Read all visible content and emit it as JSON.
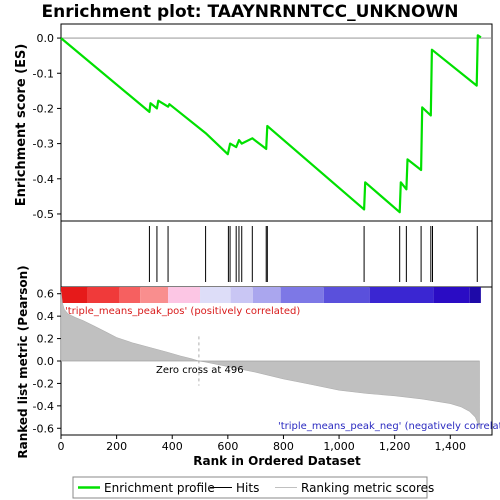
{
  "chart_data": {
    "type": "line",
    "title": "Enrichment plot: TAAYNRNNTCC_UNKNOWN",
    "xlabel": "Rank in Ordered Dataset",
    "ylabel_top": "Enrichment score (ES)",
    "ylabel_bottom": "Ranked list metric (Pearson)",
    "xlim": [
      0,
      1550
    ],
    "x_ticks": [
      0,
      200,
      400,
      600,
      800,
      1000,
      1200,
      1400
    ],
    "x_tick_labels": [
      "0",
      "200",
      "400",
      "600",
      "800",
      "1,000",
      "1,200",
      "1,400"
    ],
    "es_ylim": [
      -0.52,
      0.04
    ],
    "es_ticks": [
      0.0,
      -0.1,
      -0.2,
      -0.3,
      -0.4,
      -0.5
    ],
    "es_tick_labels": [
      "0.0",
      "-0.1",
      "-0.2",
      "-0.3",
      "-0.4",
      "-0.5"
    ],
    "metric_ylim": [
      -0.66,
      0.66
    ],
    "metric_ticks": [
      0.6,
      0.4,
      0.2,
      0.0,
      -0.2,
      -0.4,
      -0.6
    ],
    "metric_tick_labels": [
      "0.6",
      "0.4",
      "0.2",
      "0.0",
      "-0.2",
      "-0.4",
      "-0.6"
    ],
    "series": [
      {
        "name": "Enrichment profile",
        "color": "#00e000",
        "x": [
          0,
          318,
          322,
          345,
          350,
          385,
          390,
          520,
          600,
          608,
          630,
          640,
          650,
          688,
          738,
          742,
          1090,
          1094,
          1218,
          1222,
          1242,
          1246,
          1295,
          1299,
          1330,
          1334,
          1495,
          1499,
          1510
        ],
        "y": [
          0.0,
          -0.21,
          -0.185,
          -0.2,
          -0.178,
          -0.195,
          -0.188,
          -0.27,
          -0.33,
          -0.3,
          -0.31,
          -0.29,
          -0.3,
          -0.285,
          -0.315,
          -0.25,
          -0.487,
          -0.41,
          -0.495,
          -0.41,
          -0.43,
          -0.345,
          -0.375,
          -0.197,
          -0.22,
          -0.033,
          -0.135,
          0.008,
          0.002
        ]
      }
    ],
    "hits": [
      318,
      345,
      385,
      520,
      602,
      608,
      630,
      640,
      650,
      688,
      738,
      742,
      1090,
      1218,
      1242,
      1295,
      1330,
      1336,
      1497
    ],
    "metric_curve": {
      "x": [
        0,
        5,
        12,
        25,
        50,
        80,
        120,
        160,
        200,
        260,
        320,
        380,
        430,
        470,
        496,
        520,
        600,
        700,
        800,
        900,
        1000,
        1100,
        1200,
        1300,
        1400,
        1440,
        1470,
        1490,
        1500,
        1505
      ],
      "y": [
        0.62,
        0.52,
        0.46,
        0.42,
        0.39,
        0.36,
        0.31,
        0.26,
        0.21,
        0.16,
        0.12,
        0.08,
        0.045,
        0.02,
        0.0,
        -0.01,
        -0.05,
        -0.1,
        -0.16,
        -0.21,
        -0.26,
        -0.29,
        -0.31,
        -0.34,
        -0.38,
        -0.41,
        -0.45,
        -0.5,
        -0.56,
        -0.6
      ]
    },
    "colorbar": [
      {
        "x0": 0,
        "x1": 95,
        "color": "#e61a1a"
      },
      {
        "x0": 95,
        "x1": 210,
        "color": "#f03a3a"
      },
      {
        "x0": 210,
        "x1": 285,
        "color": "#f66060"
      },
      {
        "x0": 285,
        "x1": 385,
        "color": "#f98e8e"
      },
      {
        "x0": 385,
        "x1": 500,
        "color": "#fcc6e4"
      },
      {
        "x0": 500,
        "x1": 610,
        "color": "#ddddf8"
      },
      {
        "x0": 610,
        "x1": 690,
        "color": "#c9c6f4"
      },
      {
        "x0": 690,
        "x1": 790,
        "color": "#aaa6ee"
      },
      {
        "x0": 790,
        "x1": 945,
        "color": "#7d78e6"
      },
      {
        "x0": 945,
        "x1": 1110,
        "color": "#5a50dc"
      },
      {
        "x0": 1110,
        "x1": 1340,
        "color": "#3a26d2"
      },
      {
        "x0": 1340,
        "x1": 1470,
        "color": "#2a0cc4"
      },
      {
        "x0": 1470,
        "x1": 1510,
        "color": "#1e0aa8"
      }
    ],
    "label_pos": "'triple_means_peak_pos' (positively correlated)",
    "label_neg": "'triple_means_peak_neg' (negatively correlated)",
    "zero_cross_label": "Zero cross at 496",
    "zero_cross_x": 496,
    "legend": {
      "placement": "bottom",
      "items": [
        {
          "label": "Enrichment profile",
          "kind": "line",
          "color": "#00e000"
        },
        {
          "label": "Hits",
          "kind": "tick",
          "color": "#000000"
        },
        {
          "label": "Ranking metric scores",
          "kind": "fill",
          "color": "#c0c0c0"
        }
      ]
    }
  }
}
